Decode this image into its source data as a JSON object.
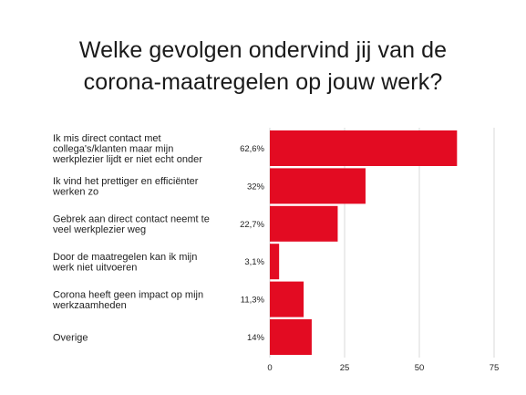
{
  "title": {
    "line1": "Welke gevolgen ondervind jij van de",
    "line2": "corona-maatregelen op jouw werk?"
  },
  "colors": {
    "bar": "#e30b22",
    "grid": "#d9d9d9"
  },
  "chart_data": {
    "type": "bar",
    "orientation": "horizontal",
    "title": "Welke gevolgen ondervind jij van de corona-maatregelen op jouw werk?",
    "categories": [
      "Ik mis direct contact met collega's/klanten maar mijn werkplezier lijdt er niet echt onder",
      "Ik vind het prettiger en efficiënter werken zo",
      "Gebrek aan direct contact neemt te veel werkplezier weg",
      "Door de maatregelen kan ik mijn werk niet uitvoeren",
      "Corona heeft geen impact op mijn werkzaamheden",
      "Overige"
    ],
    "category_lines": [
      [
        "Ik mis direct contact met",
        "collega's/klanten maar mijn",
        "werkplezier lijdt er niet echt onder"
      ],
      [
        "Ik vind het prettiger en efficiënter",
        "werken zo"
      ],
      [
        "Gebrek aan direct contact neemt te",
        "veel werkplezier weg"
      ],
      [
        "Door de maatregelen kan ik mijn",
        "werk niet uitvoeren"
      ],
      [
        "Corona heeft geen impact op mijn",
        "werkzaamheden"
      ],
      [
        "Overige"
      ]
    ],
    "values": [
      62.6,
      32,
      22.7,
      3.1,
      11.3,
      14
    ],
    "value_labels": [
      "62,6%",
      "32%",
      "22,7%",
      "3,1%",
      "11,3%",
      "14%"
    ],
    "xlim": [
      0,
      75
    ],
    "xticks": [
      0,
      25,
      50,
      75
    ],
    "grid": true
  }
}
